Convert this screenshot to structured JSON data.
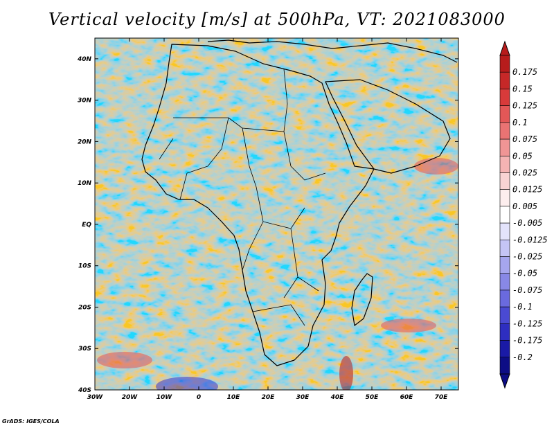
{
  "title": "Vertical velocity [m/s] at 500hPa, VT: 2021083000",
  "credit": "GrADS: IGES/COLA",
  "map": {
    "lon_ticks": [
      "30W",
      "20W",
      "10W",
      "0",
      "10E",
      "20E",
      "30E",
      "40E",
      "50E",
      "60E",
      "70E"
    ],
    "lat_ticks": [
      "40N",
      "30N",
      "20N",
      "10N",
      "EQ",
      "10S",
      "20S",
      "30S",
      "40S"
    ],
    "lon_range_deg": [
      -30,
      75
    ],
    "lat_range_deg": [
      -40,
      45
    ]
  },
  "colorbar": {
    "labels": [
      "0.175",
      "0.15",
      "0.125",
      "0.1",
      "0.075",
      "0.05",
      "0.025",
      "0.0125",
      "0.005",
      "-0.005",
      "-0.0125",
      "-0.025",
      "-0.05",
      "-0.075",
      "-0.1",
      "-0.125",
      "-0.175",
      "-0.2"
    ],
    "colors": [
      "#b71c1c",
      "#c62828",
      "#d83a3a",
      "#e35757",
      "#ea7373",
      "#f09595",
      "#f5b3b3",
      "#f9d3d3",
      "#fdeeee",
      "#ffffff",
      "#e3e3fb",
      "#c5c5f5",
      "#a6a6ee",
      "#8888e6",
      "#6a6ade",
      "#4a4ad2",
      "#2e2ec0",
      "#1a1aa6",
      "#0d0d85"
    ]
  }
}
